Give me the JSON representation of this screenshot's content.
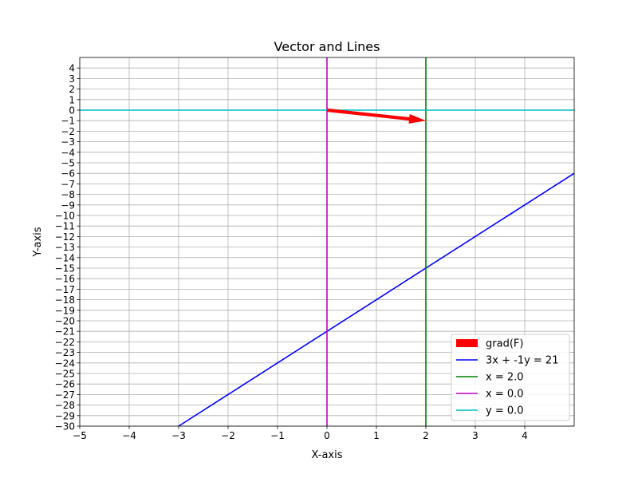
{
  "chart_data": {
    "type": "line",
    "title": "Vector and Lines",
    "xlabel": "X-axis",
    "ylabel": "Y-axis",
    "xlim": [
      -5,
      5
    ],
    "ylim": [
      -30,
      5
    ],
    "x_ticks": [
      -5,
      -4,
      -3,
      -2,
      -1,
      0,
      1,
      2,
      3,
      4
    ],
    "x_tick_labels": [
      "−5",
      "−4",
      "−3",
      "−2",
      "−1",
      "0",
      "1",
      "2",
      "3",
      "4"
    ],
    "y_ticks": [
      4,
      3,
      2,
      1,
      0,
      -1,
      -2,
      -3,
      -4,
      -5,
      -6,
      -7,
      -8,
      -9,
      -10,
      -11,
      -12,
      -13,
      -14,
      -15,
      -16,
      -17,
      -18,
      -19,
      -20,
      -21,
      -22,
      -23,
      -24,
      -25,
      -26,
      -27,
      -28,
      -29,
      -30
    ],
    "y_tick_labels": [
      "4",
      "3",
      "2",
      "1",
      "0",
      "−1",
      "−2",
      "−3",
      "−4",
      "−5",
      "−6",
      "−7",
      "−8",
      "−9",
      "−10",
      "−11",
      "−12",
      "−13",
      "−14",
      "−15",
      "−16",
      "−17",
      "−18",
      "−19",
      "−20",
      "−21",
      "−22",
      "−23",
      "−24",
      "−25",
      "−26",
      "−27",
      "−28",
      "−29",
      "−30"
    ],
    "grid": true,
    "legend_position": "lower-right",
    "vector": {
      "name": "grad(F)",
      "origin": [
        0,
        0
      ],
      "tip": [
        2,
        -1
      ],
      "color": "#ff0000"
    },
    "series": [
      {
        "name": "3x + -1y = 21",
        "kind": "line",
        "x": [
          -3,
          5
        ],
        "y": [
          -30,
          -6
        ],
        "color": "#0000ff"
      },
      {
        "name": "x = 2.0",
        "kind": "vline",
        "x": 2.0,
        "color": "#008000"
      },
      {
        "name": "x = 0.0",
        "kind": "vline",
        "x": 0.0,
        "color": "#bf00bf"
      },
      {
        "name": "y = 0.0",
        "kind": "hline",
        "y": 0.0,
        "color": "#00bfbf"
      }
    ]
  }
}
